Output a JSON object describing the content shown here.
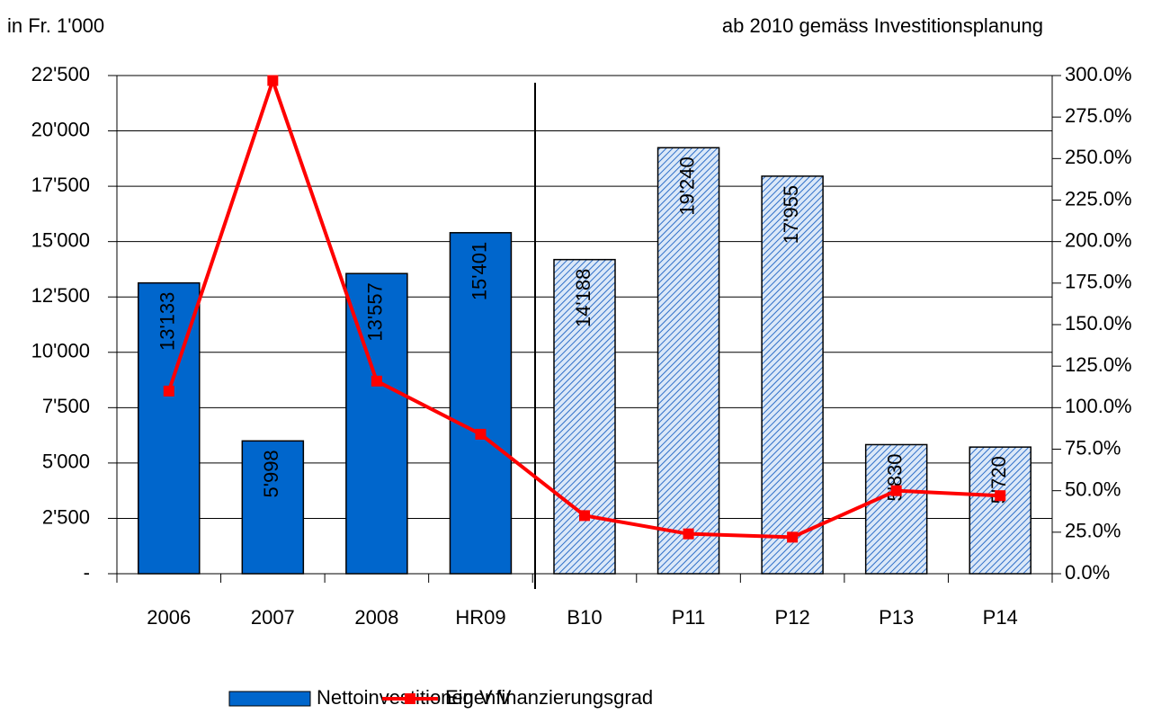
{
  "chart_data": {
    "type": "bar-line",
    "annotations": [
      "in Fr. 1'000",
      "ab 2010 gemäss Investitionsplanung"
    ],
    "categories": [
      "2006",
      "2007",
      "2008",
      "HR09",
      "B10",
      "P11",
      "P12",
      "P13",
      "P14"
    ],
    "series": [
      {
        "name": "Nettoinvestitionen V V",
        "type": "bar",
        "color": "#0066cc",
        "hatched": [
          false,
          false,
          false,
          false,
          true,
          true,
          true,
          true,
          true
        ],
        "values": [
          13133,
          5998,
          13557,
          15401,
          14188,
          19240,
          17955,
          5830,
          5720
        ],
        "value_labels": [
          "13'133",
          "5'998",
          "13'557",
          "15'401",
          "14'188",
          "19'240",
          "17'955",
          "5'830",
          "5'720"
        ]
      },
      {
        "name": "Eigenfinanzierungsgrad",
        "type": "line",
        "color": "#ff0000",
        "axis": "y2",
        "values": [
          110,
          297,
          116,
          84,
          35,
          24,
          22,
          50,
          47
        ]
      }
    ],
    "ylim": [
      0,
      22500
    ],
    "yticks": [
      {
        "value": 0,
        "label": "-"
      },
      {
        "value": 2500,
        "label": "2'500"
      },
      {
        "value": 5000,
        "label": "5'000"
      },
      {
        "value": 7500,
        "label": "7'500"
      },
      {
        "value": 10000,
        "label": "10'000"
      },
      {
        "value": 12500,
        "label": "12'500"
      },
      {
        "value": 15000,
        "label": "15'000"
      },
      {
        "value": 17500,
        "label": "17'500"
      },
      {
        "value": 20000,
        "label": "20'000"
      },
      {
        "value": 22500,
        "label": "22'500"
      }
    ],
    "y2lim": [
      0,
      300
    ],
    "y2ticks": [
      {
        "value": 0,
        "label": "0.0%"
      },
      {
        "value": 25,
        "label": "25.0%"
      },
      {
        "value": 50,
        "label": "50.0%"
      },
      {
        "value": 75,
        "label": "75.0%"
      },
      {
        "value": 100,
        "label": "100.0%"
      },
      {
        "value": 125,
        "label": "125.0%"
      },
      {
        "value": 150,
        "label": "150.0%"
      },
      {
        "value": 175,
        "label": "175.0%"
      },
      {
        "value": 200,
        "label": "200.0%"
      },
      {
        "value": 225,
        "label": "225.0%"
      },
      {
        "value": 250,
        "label": "250.0%"
      },
      {
        "value": 275,
        "label": "275.0%"
      },
      {
        "value": 300,
        "label": "300.0%"
      }
    ],
    "grid": true,
    "legend": "bottom"
  }
}
